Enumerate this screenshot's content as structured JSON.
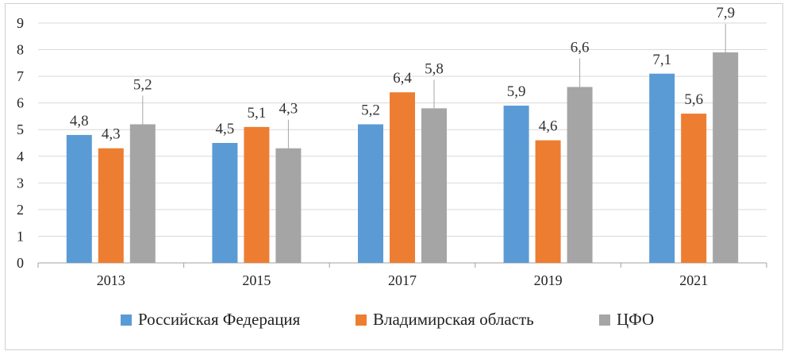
{
  "chart_data": {
    "type": "bar",
    "categories": [
      "2013",
      "2015",
      "2017",
      "2019",
      "2021"
    ],
    "series": [
      {
        "name": "Российская Федерация",
        "color": "#5b9bd5",
        "values": [
          4.8,
          4.5,
          5.2,
          5.9,
          7.1
        ],
        "labels": [
          "4,8",
          "4,5",
          "5,2",
          "5,9",
          "7,1"
        ]
      },
      {
        "name": "Владимирская область",
        "color": "#ed7d31",
        "values": [
          4.3,
          5.1,
          6.4,
          4.6,
          5.6
        ],
        "labels": [
          "4,3",
          "5,1",
          "6,4",
          "4,6",
          "5,6"
        ]
      },
      {
        "name": "ЦФО",
        "color": "#a5a5a5",
        "values": [
          5.2,
          4.3,
          5.8,
          6.6,
          7.9
        ],
        "labels": [
          "5,2",
          "4,3",
          "5,8",
          "6,6",
          "7,9"
        ]
      }
    ],
    "ylim": [
      0,
      9
    ],
    "yticks": [
      "0",
      "1",
      "2",
      "3",
      "4",
      "5",
      "6",
      "7",
      "8",
      "9"
    ],
    "grid": true,
    "legend_position": "bottom"
  }
}
